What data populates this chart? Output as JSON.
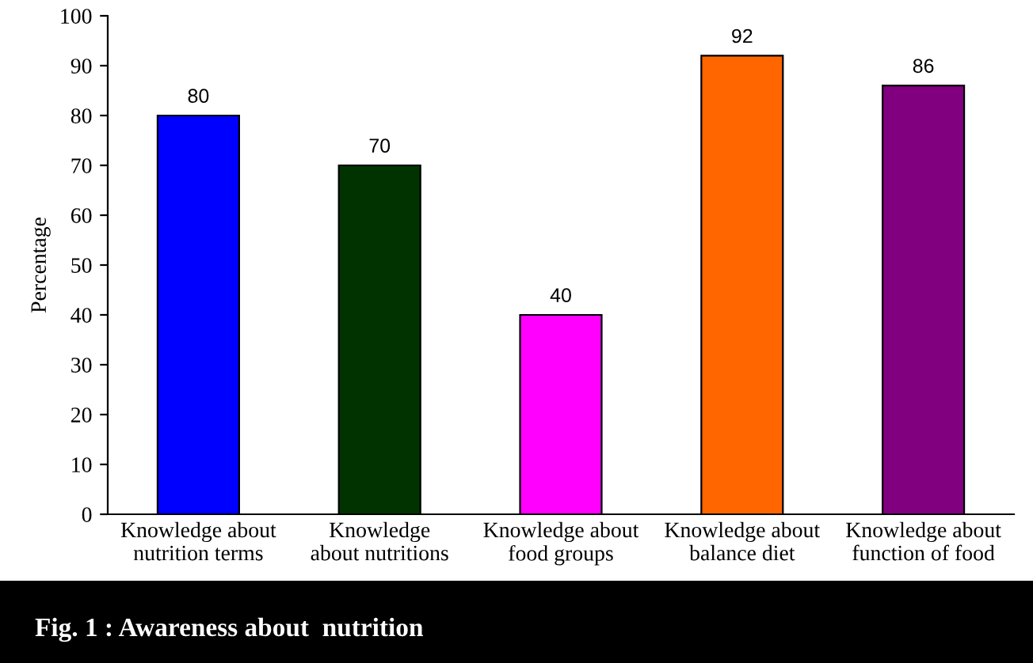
{
  "chart_data": {
    "type": "bar",
    "title": "Fig. 1 : Awareness about  nutrition",
    "ylabel": "Percentage",
    "categories": [
      "Knowledge about\nnutrition terms",
      "Knowledge\nabout nutritions",
      "Knowledge about\nfood groups",
      "Knowledge about\nbalance diet",
      "Knowledge about\nfunction of food"
    ],
    "values": [
      80,
      70,
      40,
      92,
      86
    ],
    "colors": [
      "#0000ff",
      "#003300",
      "#ff00ff",
      "#ff6600",
      "#800080"
    ],
    "ylim": [
      0,
      100
    ],
    "yticks": [
      0,
      10,
      20,
      30,
      40,
      50,
      60,
      70,
      80,
      90,
      100
    ],
    "data_labels": true,
    "grid": false,
    "legend": false
  }
}
